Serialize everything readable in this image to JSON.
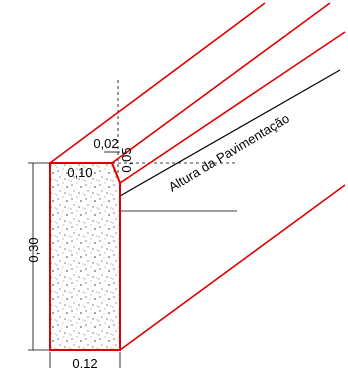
{
  "dimensions": {
    "chamfer_width": "0,02",
    "chamfer_height": "0,05",
    "top_width": "0,10",
    "height": "0,30",
    "base_width": "0,12"
  },
  "labels": {
    "pavement": "Altura da Pavimentação"
  }
}
